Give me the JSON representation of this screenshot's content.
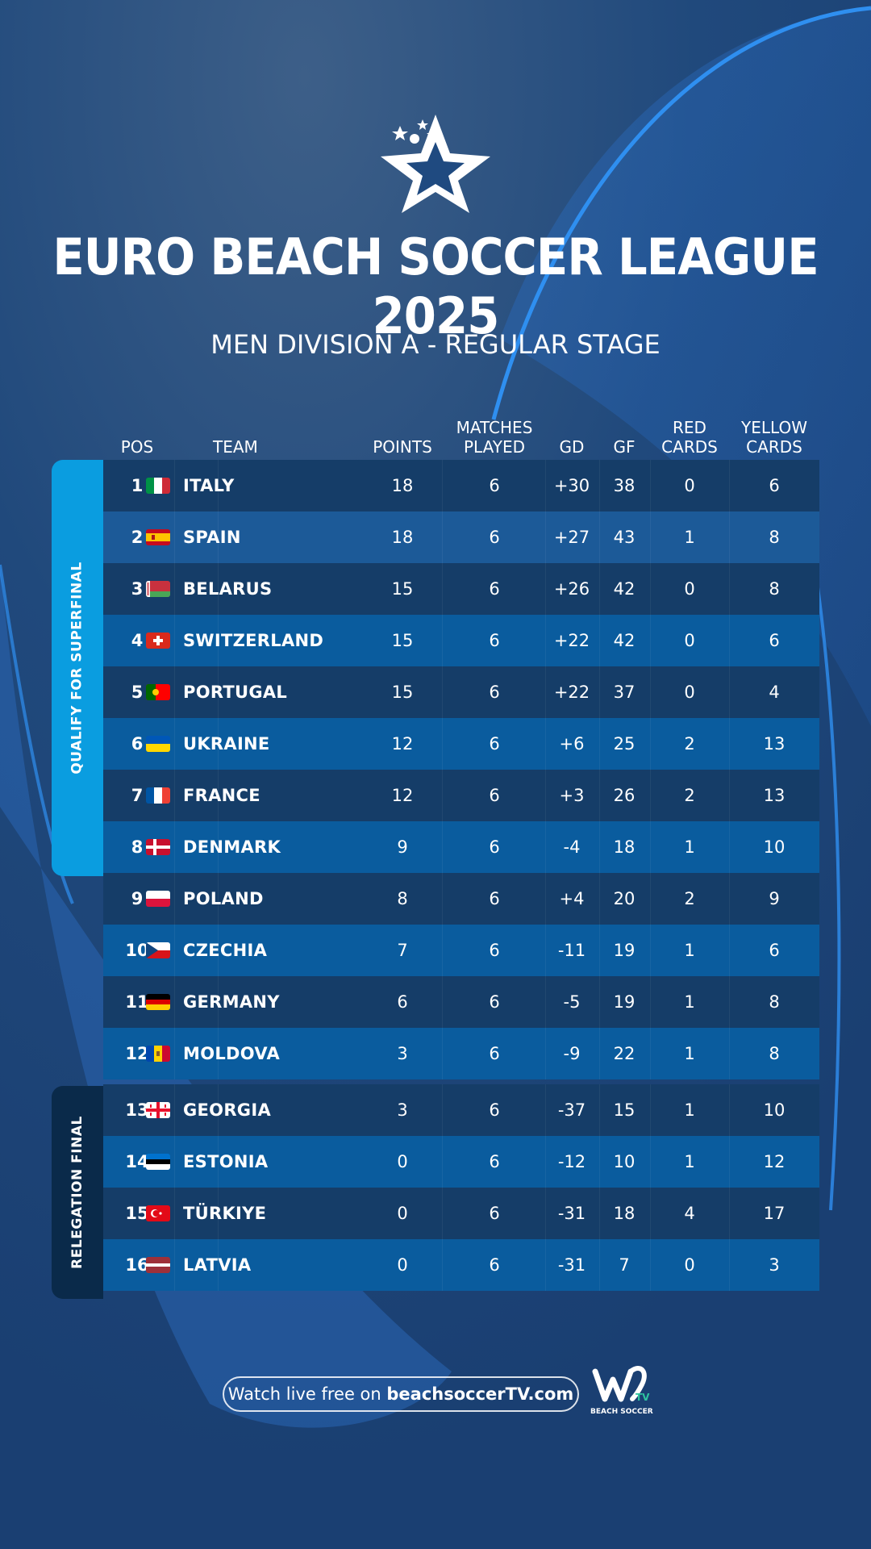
{
  "header": {
    "title": "EURO BEACH SOCCER LEAGUE 2025",
    "subtitle": "MEN DIVISION A - REGULAR STAGE"
  },
  "columns": {
    "pos": "POS",
    "team": "TEAM",
    "points": "POINTS",
    "matches_1": "MATCHES",
    "matches_2": "PLAYED",
    "gd": "GD",
    "gf": "GF",
    "red_1": "RED",
    "red_2": "CARDS",
    "yellow_1": "YELLOW",
    "yellow_2": "CARDS"
  },
  "zones": {
    "qualify": "QUALIFY FOR SUPERFINAL",
    "relegation": "RELEGATION FINAL"
  },
  "standings": [
    {
      "pos": "1",
      "team": "ITALY",
      "flag": "italy-flag",
      "points": "18",
      "played": "6",
      "gd": "+30",
      "gf": "38",
      "red": "0",
      "yellow": "6"
    },
    {
      "pos": "2",
      "team": "SPAIN",
      "flag": "spain-flag",
      "points": "18",
      "played": "6",
      "gd": "+27",
      "gf": "43",
      "red": "1",
      "yellow": "8"
    },
    {
      "pos": "3",
      "team": "BELARUS",
      "flag": "belarus-flag",
      "points": "15",
      "played": "6",
      "gd": "+26",
      "gf": "42",
      "red": "0",
      "yellow": "8"
    },
    {
      "pos": "4",
      "team": "SWITZERLAND",
      "flag": "switzerland-flag",
      "points": "15",
      "played": "6",
      "gd": "+22",
      "gf": "42",
      "red": "0",
      "yellow": "6"
    },
    {
      "pos": "5",
      "team": "PORTUGAL",
      "flag": "portugal-flag",
      "points": "15",
      "played": "6",
      "gd": "+22",
      "gf": "37",
      "red": "0",
      "yellow": "4"
    },
    {
      "pos": "6",
      "team": "UKRAINE",
      "flag": "ukraine-flag",
      "points": "12",
      "played": "6",
      "gd": "+6",
      "gf": "25",
      "red": "2",
      "yellow": "13"
    },
    {
      "pos": "7",
      "team": "FRANCE",
      "flag": "france-flag",
      "points": "12",
      "played": "6",
      "gd": "+3",
      "gf": "26",
      "red": "2",
      "yellow": "13"
    },
    {
      "pos": "8",
      "team": "DENMARK",
      "flag": "denmark-flag",
      "points": "9",
      "played": "6",
      "gd": "-4",
      "gf": "18",
      "red": "1",
      "yellow": "10"
    },
    {
      "pos": "9",
      "team": "POLAND",
      "flag": "poland-flag",
      "points": "8",
      "played": "6",
      "gd": "+4",
      "gf": "20",
      "red": "2",
      "yellow": "9"
    },
    {
      "pos": "10",
      "team": "CZECHIA",
      "flag": "czechia-flag",
      "points": "7",
      "played": "6",
      "gd": "-11",
      "gf": "19",
      "red": "1",
      "yellow": "6"
    },
    {
      "pos": "11",
      "team": "GERMANY",
      "flag": "germany-flag",
      "points": "6",
      "played": "6",
      "gd": "-5",
      "gf": "19",
      "red": "1",
      "yellow": "8"
    },
    {
      "pos": "12",
      "team": "MOLDOVA",
      "flag": "moldova-flag",
      "points": "3",
      "played": "6",
      "gd": "-9",
      "gf": "22",
      "red": "1",
      "yellow": "8"
    },
    {
      "pos": "13",
      "team": "GEORGIA",
      "flag": "georgia-flag",
      "points": "3",
      "played": "6",
      "gd": "-37",
      "gf": "15",
      "red": "1",
      "yellow": "10"
    },
    {
      "pos": "14",
      "team": "ESTONIA",
      "flag": "estonia-flag",
      "points": "0",
      "played": "6",
      "gd": "-12",
      "gf": "10",
      "red": "1",
      "yellow": "12"
    },
    {
      "pos": "15",
      "team": "TÜRKIYE",
      "flag": "turkiye-flag",
      "points": "0",
      "played": "6",
      "gd": "-31",
      "gf": "18",
      "red": "4",
      "yellow": "17"
    },
    {
      "pos": "16",
      "team": "LATVIA",
      "flag": "latvia-flag",
      "points": "0",
      "played": "6",
      "gd": "-31",
      "gf": "7",
      "red": "0",
      "yellow": "3"
    }
  ],
  "footer": {
    "watch_prefix": "Watch live free on ",
    "watch_site": "beachsoccerTV.com",
    "tv_logo_text": "BEACH SOCCER"
  },
  "colors": {
    "row_dark": "#153d68",
    "row_light": "#0a5c9e",
    "qualify_zone": "#0a9de0",
    "relegation_zone": "#0a2a4a",
    "accent_line": "#2f8ff0"
  }
}
